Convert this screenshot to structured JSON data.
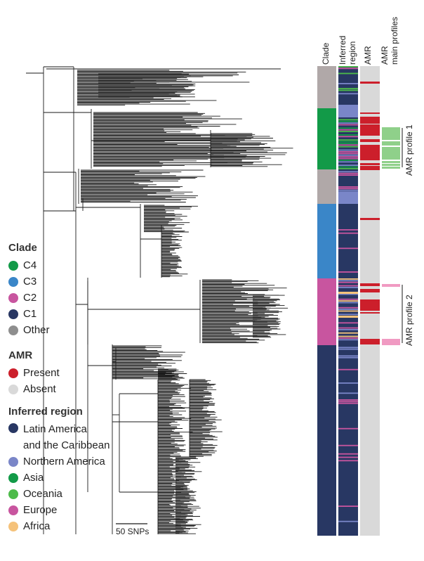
{
  "colors": {
    "clade": {
      "C4": "#129a48",
      "C3": "#3a86c8",
      "C2": "#c8559f",
      "C1": "#283763",
      "Other": "#b0a8a8"
    },
    "amr": {
      "Present": "#cc1f2b",
      "Absent": "#d9d9d9"
    },
    "region": {
      "Latin America and the Caribbean": "#283763",
      "Northern America": "#7a86c8",
      "Asia": "#129a48",
      "Oceania": "#4dbb4a",
      "Europe": "#c8559f",
      "Africa": "#f5c27a"
    },
    "profile1": "#8fd08a",
    "profile2": "#f09ac2"
  },
  "headers": {
    "clade": "Clade",
    "region_line1": "Inferred",
    "region_line2": "region",
    "amr": "AMR",
    "profiles_line1": "AMR",
    "profiles_line2": "main profiles"
  },
  "profile_labels": {
    "p1": "AMR profile 1",
    "p2": "AMR profile 2"
  },
  "scale_bar": {
    "label": "50 SNPs"
  },
  "legend": {
    "clade": {
      "title": "Clade",
      "items": [
        {
          "label": "C4",
          "color": "#129a48"
        },
        {
          "label": "C3",
          "color": "#3a86c8"
        },
        {
          "label": "C2",
          "color": "#c8559f"
        },
        {
          "label": "C1",
          "color": "#283763"
        },
        {
          "label": "Other",
          "color": "#8e8e8e"
        }
      ]
    },
    "amr": {
      "title": "AMR",
      "items": [
        {
          "label": "Present",
          "color": "#cc1f2b"
        },
        {
          "label": "Absent",
          "color": "#d9d9d9"
        }
      ]
    },
    "region": {
      "title": "Inferred region",
      "items": [
        {
          "label_line1": "Latin America",
          "label_line2": "and the Caribbean",
          "color": "#283763"
        },
        {
          "label": "Northern America",
          "color": "#7a86c8"
        },
        {
          "label": "Asia",
          "color": "#129a48"
        },
        {
          "label": "Oceania",
          "color": "#4dbb4a"
        },
        {
          "label": "Europe",
          "color": "#c8559f"
        },
        {
          "label": "Africa",
          "color": "#f5c27a"
        }
      ]
    }
  }
}
